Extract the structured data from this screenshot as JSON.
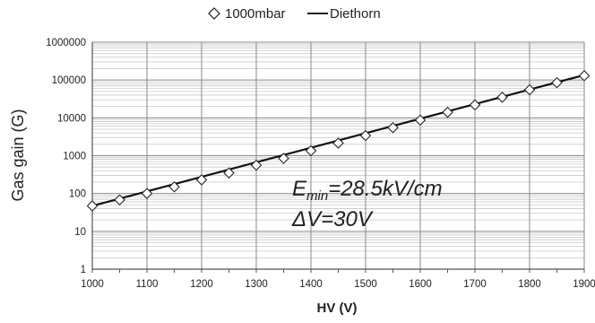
{
  "chart_data": {
    "type": "scatter",
    "xlabel": "HV (V)",
    "ylabel": "Gas gain (G)",
    "xlim": [
      1000,
      1900
    ],
    "ylim": [
      1,
      1000000
    ],
    "yscale": "log",
    "grid": true,
    "legend_position": "top-center",
    "x_ticks": [
      "1000",
      "1100",
      "1200",
      "1300",
      "1400",
      "1500",
      "1600",
      "1700",
      "1800",
      "1900"
    ],
    "y_ticks": [
      "1",
      "10",
      "100",
      "1000",
      "10000",
      "100000",
      "1000000"
    ],
    "series": [
      {
        "name": "1000mbar",
        "marker": "diamond-open",
        "x": [
          1000,
          1050,
          1100,
          1150,
          1200,
          1250,
          1300,
          1350,
          1400,
          1450,
          1500,
          1550,
          1600,
          1650,
          1700,
          1750,
          1800,
          1850,
          1900
        ],
        "y": [
          47,
          68,
          100,
          150,
          230,
          350,
          560,
          850,
          1350,
          2150,
          3400,
          5500,
          8700,
          14000,
          22000,
          35000,
          55000,
          85000,
          130000
        ]
      },
      {
        "name": "Diethorn",
        "marker": "line",
        "x": [
          1000,
          1900
        ],
        "y": [
          47,
          135000
        ]
      }
    ],
    "annotations": [
      {
        "base": "E",
        "sub": "min",
        "rest": "=28.5kV/cm"
      },
      {
        "text": "ΔV=30V"
      }
    ]
  }
}
